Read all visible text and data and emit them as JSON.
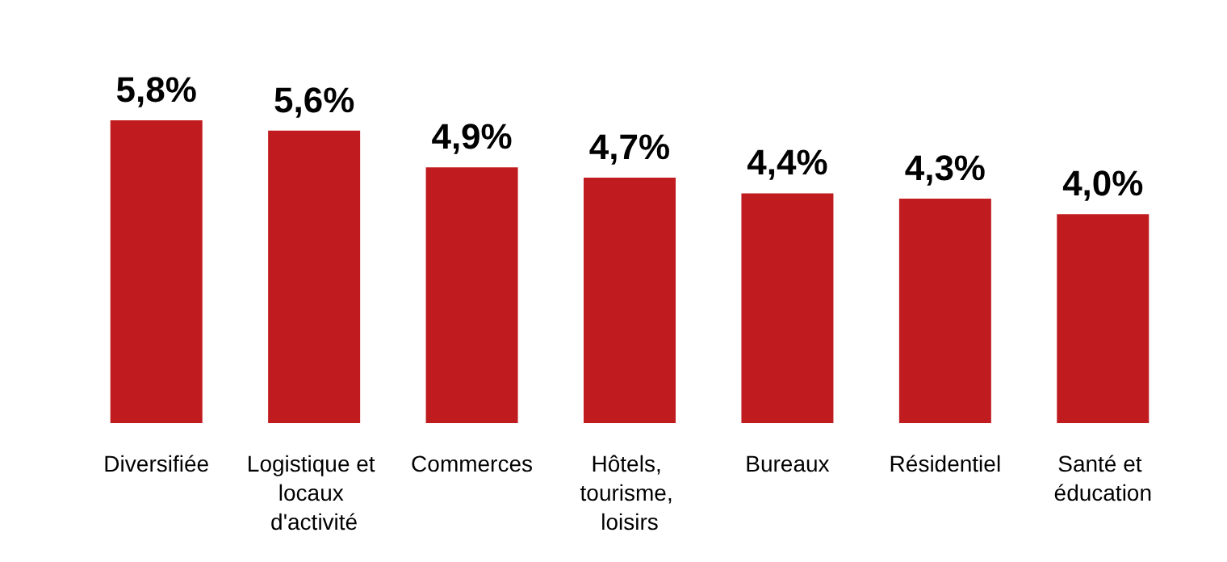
{
  "chart_data": {
    "type": "bar",
    "categories": [
      "Diversifiée",
      "Logistique et locaux d'activité",
      "Commerces",
      "Hôtels, tourisme, loisirs",
      "Bureaux",
      "Résidentiel",
      "Santé et éducation"
    ],
    "values": [
      5.8,
      5.6,
      4.9,
      4.7,
      4.4,
      4.3,
      4.0
    ],
    "value_labels": [
      "5,8%",
      "5,6%",
      "4,9%",
      "4,7%",
      "4,4%",
      "4,3%",
      "4,0%"
    ],
    "color": "#c01b1e"
  }
}
